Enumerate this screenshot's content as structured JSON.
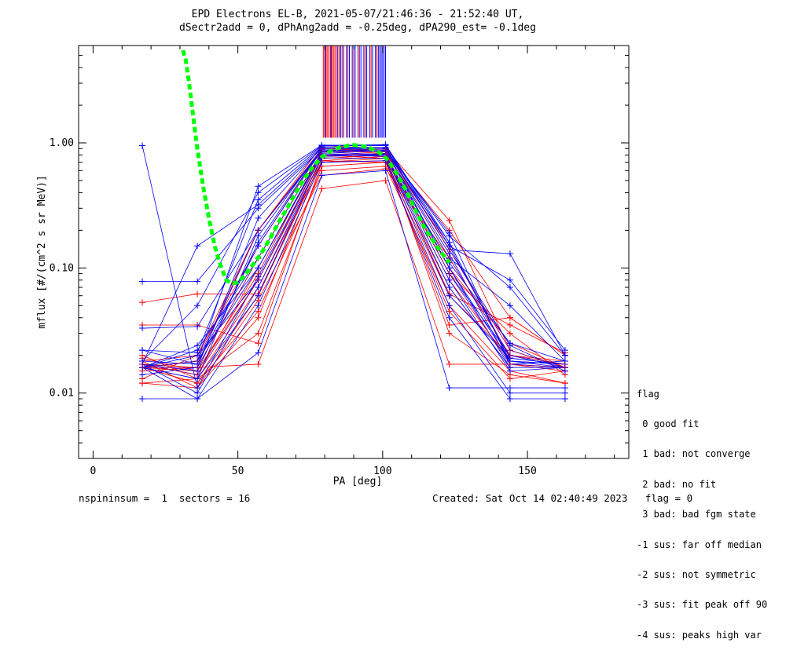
{
  "title_line1": "EPD Electrons EL-B, 2021-05-07/21:46:36 - 21:52:40 UT,",
  "title_line2": "dSectr2add = 0, dPhAng2add = -0.25deg, dPA290_est=  -0.1deg",
  "footer_left": "nspininsum =  1  sectors = 16",
  "footer_right": "Created: Sat Oct 14 02:40:49 2023   flag = 0",
  "legend": {
    "title": "flag",
    "items": [
      " 0 good fit",
      " 1 bad: not converge",
      " 2 bad: no fit",
      " 3 bad: bad fgm state",
      "-1 sus: far off median",
      "-2 sus: not symmetric",
      "-3 sus: fit peak off 90",
      "-4 sus: peaks high var"
    ]
  },
  "colors": {
    "red": "#ff0000",
    "blue": "#0000ff",
    "purple": "#7f007f",
    "green": "#00ff00"
  },
  "chart_data": {
    "type": "line",
    "xlabel": "PA [deg]",
    "ylabel": "mflux [#/(cm^2 s sr MeV)]",
    "xlim": [
      -5,
      185
    ],
    "ylim": [
      0.003,
      6
    ],
    "yscale": "log",
    "x_ticks": [
      0,
      50,
      100,
      150
    ],
    "x_tick_labels": [
      "0",
      "50",
      "100",
      "150"
    ],
    "y_ticks": [
      0.01,
      0.1,
      1.0
    ],
    "y_tick_labels": [
      "0.01",
      "0.10",
      "1.00"
    ],
    "pa_bins": [
      17,
      36,
      57,
      79,
      101,
      123,
      144,
      163
    ],
    "red_traces": [
      [
        0.018,
        0.011,
        0.055,
        0.55,
        0.62,
        0.12,
        0.02,
        0.017
      ],
      [
        0.02,
        0.013,
        0.07,
        0.7,
        0.72,
        0.07,
        0.016,
        0.016
      ],
      [
        0.016,
        0.012,
        0.06,
        0.72,
        0.7,
        0.06,
        0.02,
        0.018
      ],
      [
        0.017,
        0.014,
        0.1,
        0.8,
        0.75,
        0.1,
        0.025,
        0.016
      ],
      [
        0.015,
        0.016,
        0.12,
        0.85,
        0.8,
        0.09,
        0.03,
        0.014
      ],
      [
        0.013,
        0.02,
        0.15,
        0.9,
        0.85,
        0.2,
        0.04,
        0.02
      ],
      [
        0.016,
        0.012,
        0.045,
        0.6,
        0.65,
        0.05,
        0.015,
        0.012
      ],
      [
        0.019,
        0.015,
        0.08,
        0.75,
        0.8,
        0.08,
        0.018,
        0.017
      ],
      [
        0.012,
        0.013,
        0.03,
        0.65,
        0.7,
        0.045,
        0.013,
        0.015
      ],
      [
        0.018,
        0.02,
        0.2,
        0.95,
        0.9,
        0.24,
        0.022,
        0.016
      ],
      [
        0.017,
        0.016,
        0.017,
        0.43,
        0.5,
        0.017,
        0.017,
        0.015
      ],
      [
        0.035,
        0.035,
        0.025,
        0.7,
        0.75,
        0.035,
        0.04,
        0.02
      ],
      [
        0.053,
        0.062,
        0.062,
        0.72,
        0.78,
        0.062,
        0.035,
        0.021
      ],
      [
        0.012,
        0.011,
        0.04,
        0.78,
        0.8,
        0.03,
        0.014,
        0.012
      ],
      [
        0.016,
        0.015,
        0.09,
        0.88,
        0.82,
        0.15,
        0.019,
        0.017
      ]
    ],
    "blue_traces": [
      [
        0.95,
        0.011,
        0.085,
        0.8,
        0.78,
        0.11,
        0.025,
        0.018
      ],
      [
        0.078,
        0.078,
        0.3,
        0.9,
        0.9,
        0.18,
        0.07,
        0.02
      ],
      [
        0.017,
        0.15,
        0.32,
        0.92,
        0.92,
        0.14,
        0.13,
        0.02
      ],
      [
        0.016,
        0.018,
        0.45,
        0.96,
        0.95,
        0.15,
        0.08,
        0.022
      ],
      [
        0.022,
        0.017,
        0.2,
        0.88,
        0.85,
        0.12,
        0.05,
        0.018
      ],
      [
        0.009,
        0.009,
        0.05,
        0.7,
        0.72,
        0.04,
        0.009,
        0.009
      ],
      [
        0.016,
        0.022,
        0.12,
        0.85,
        0.8,
        0.08,
        0.015,
        0.016
      ],
      [
        0.018,
        0.05,
        0.4,
        0.95,
        0.97,
        0.16,
        0.018,
        0.017
      ],
      [
        0.016,
        0.013,
        0.06,
        0.78,
        0.8,
        0.06,
        0.019,
        0.017
      ],
      [
        0.033,
        0.034,
        0.2,
        0.86,
        0.88,
        0.19,
        0.017,
        0.018
      ],
      [
        0.016,
        0.018,
        0.1,
        0.82,
        0.8,
        0.07,
        0.016,
        0.016
      ],
      [
        0.017,
        0.015,
        0.16,
        0.9,
        0.87,
        0.1,
        0.018,
        0.016
      ],
      [
        0.016,
        0.009,
        0.021,
        0.55,
        0.6,
        0.011,
        0.011,
        0.011
      ],
      [
        0.018,
        0.017,
        0.15,
        0.88,
        0.85,
        0.13,
        0.017,
        0.016
      ],
      [
        0.016,
        0.02,
        0.08,
        0.8,
        0.82,
        0.09,
        0.02,
        0.016
      ],
      [
        0.014,
        0.016,
        0.25,
        0.92,
        0.9,
        0.14,
        0.024,
        0.015
      ],
      [
        0.022,
        0.021,
        0.35,
        0.94,
        0.96,
        0.15,
        0.019,
        0.017
      ],
      [
        0.017,
        0.01,
        0.07,
        0.76,
        0.75,
        0.05,
        0.01,
        0.01
      ],
      [
        0.016,
        0.013,
        0.18,
        0.9,
        0.9,
        0.1,
        0.016,
        0.016
      ],
      [
        0.016,
        0.024,
        0.1,
        0.84,
        0.86,
        0.16,
        0.018,
        0.017
      ]
    ],
    "purple_traces": [
      [
        0.016,
        0.016,
        0.12,
        0.85,
        0.85,
        0.12,
        0.02,
        0.017
      ],
      [
        0.017,
        0.014,
        0.08,
        0.8,
        0.82,
        0.09,
        0.017,
        0.016
      ],
      [
        0.016,
        0.018,
        0.2,
        0.9,
        0.88,
        0.14,
        0.022,
        0.016
      ]
    ],
    "red_vlines_pa": [
      79.5,
      80,
      80.5,
      81,
      81.5,
      82,
      82.5,
      83,
      83.5,
      84,
      85,
      86,
      88,
      90,
      92,
      94,
      96,
      98
    ],
    "blue_vlines_pa": [
      80.2,
      82.2,
      84.5,
      85.5,
      86.5,
      87.5,
      88.5,
      89.5,
      90.5,
      91.5,
      92.5,
      93.5,
      94.5,
      95.5,
      96.5,
      97.5,
      98.5,
      99,
      99.5,
      100,
      100.5,
      101
    ],
    "vline_y_range": [
      1.1,
      6
    ],
    "fit_curve": {
      "x": [
        31,
        32,
        33,
        34,
        35,
        36,
        38,
        40,
        42,
        44,
        46,
        48,
        50,
        52,
        55,
        58,
        61,
        64,
        67,
        70,
        73,
        76,
        79,
        82,
        85,
        88,
        90,
        92,
        95,
        98,
        100,
        102,
        105,
        108,
        111,
        114,
        117,
        120,
        123
      ],
      "y": [
        5.5,
        4.6,
        3.2,
        2.1,
        1.35,
        0.9,
        0.45,
        0.25,
        0.15,
        0.105,
        0.08,
        0.075,
        0.077,
        0.085,
        0.105,
        0.13,
        0.17,
        0.23,
        0.3,
        0.4,
        0.52,
        0.65,
        0.77,
        0.86,
        0.92,
        0.95,
        0.96,
        0.95,
        0.92,
        0.86,
        0.8,
        0.72,
        0.56,
        0.42,
        0.3,
        0.22,
        0.17,
        0.135,
        0.11
      ]
    }
  }
}
